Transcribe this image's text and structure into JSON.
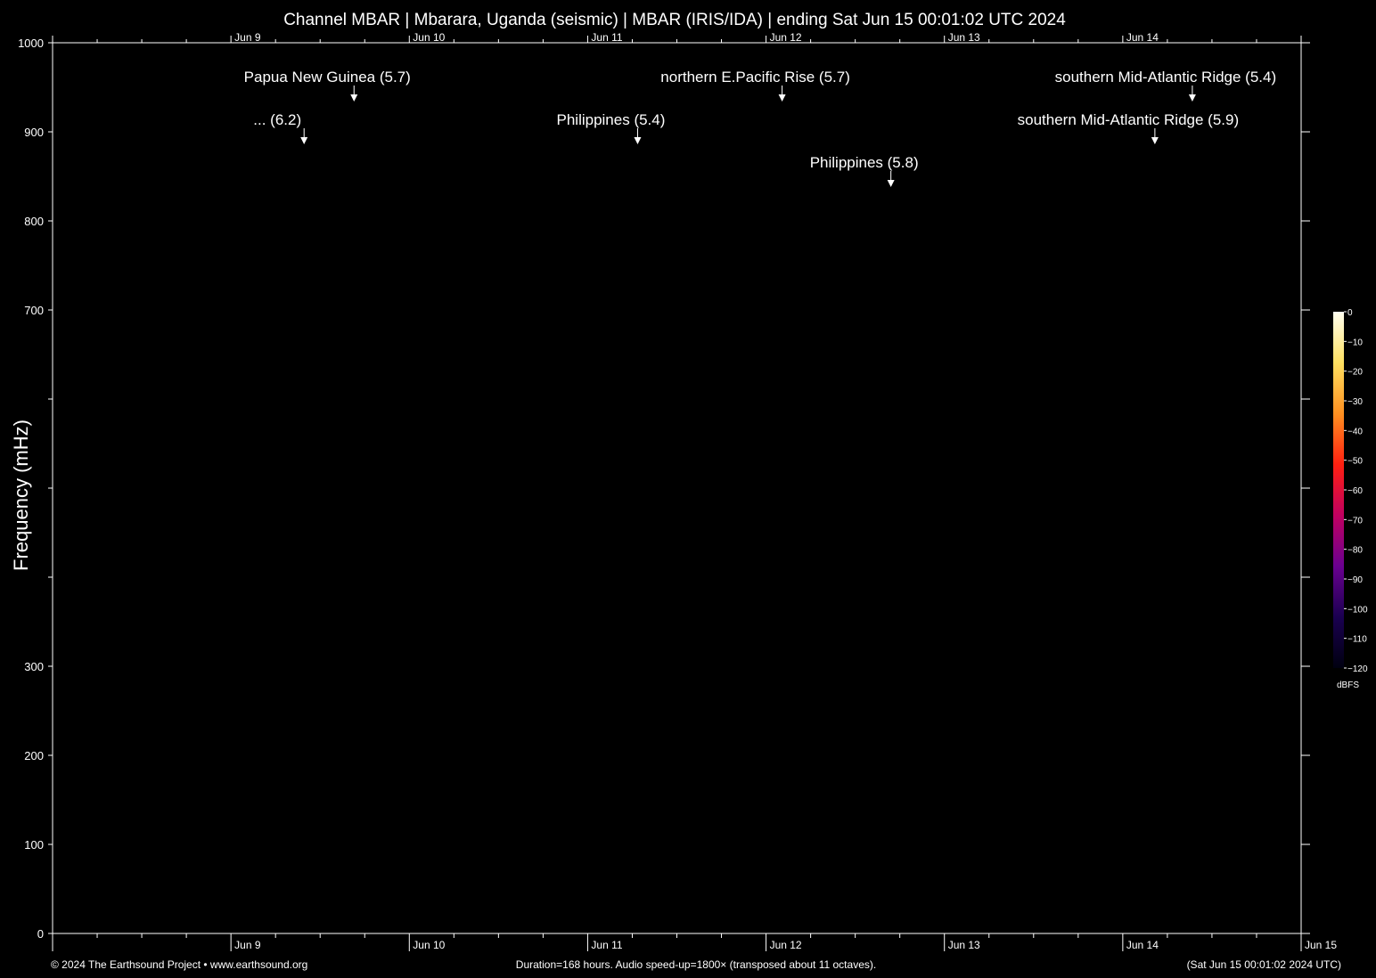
{
  "chart_data": {
    "type": "heatmap",
    "title": "Channel MBAR | Mbarara, Uganda (seismic) | MBAR (IRIS/IDA) | ending Sat Jun 15 00:01:02 UTC 2024",
    "ylabel": "Frequency (mHz)",
    "xlabel": "",
    "ylim": [
      0,
      1000
    ],
    "xlim_days": [
      8,
      15
    ],
    "yticks": [
      {
        "v": 0,
        "label": "0"
      },
      {
        "v": 100,
        "label": "100"
      },
      {
        "v": 200,
        "label": "200"
      },
      {
        "v": 300,
        "label": "300"
      },
      {
        "v": 400,
        "label": ""
      },
      {
        "v": 500,
        "label": ""
      },
      {
        "v": 600,
        "label": ""
      },
      {
        "v": 700,
        "label": "700"
      },
      {
        "v": 800,
        "label": "800"
      },
      {
        "v": 900,
        "label": "900"
      },
      {
        "v": 1000,
        "label": "1000"
      }
    ],
    "xticks_top": [
      {
        "day": 9,
        "label": "Jun  9"
      },
      {
        "day": 10,
        "label": "Jun 10"
      },
      {
        "day": 11,
        "label": "Jun 11"
      },
      {
        "day": 12,
        "label": "Jun 12"
      },
      {
        "day": 13,
        "label": "Jun 13"
      },
      {
        "day": 14,
        "label": "Jun 14"
      }
    ],
    "xticks_bottom": [
      {
        "day": 9,
        "label": "Jun  9"
      },
      {
        "day": 10,
        "label": "Jun 10"
      },
      {
        "day": 11,
        "label": "Jun 11"
      },
      {
        "day": 12,
        "label": "Jun 12"
      },
      {
        "day": 13,
        "label": "Jun 13"
      },
      {
        "day": 14,
        "label": "Jun 14"
      },
      {
        "day": 15,
        "label": "Jun 15"
      }
    ],
    "annotations": [
      {
        "text": "Papua New Guinea (5.7)",
        "day": 9.69,
        "tier": 0
      },
      {
        "text": "northern E.Pacific Rise (5.7)",
        "day": 12.09,
        "tier": 0
      },
      {
        "text": "southern Mid-Atlantic Ridge (5.4)",
        "day": 14.39,
        "tier": 0
      },
      {
        "text": "... (6.2)",
        "day": 9.41,
        "tier": 1
      },
      {
        "text": "Philippines (5.4)",
        "day": 11.28,
        "tier": 1
      },
      {
        "text": "southern Mid-Atlantic Ridge (5.9)",
        "day": 14.18,
        "tier": 1
      },
      {
        "text": "Philippines (5.8)",
        "day": 12.7,
        "tier": 2
      }
    ],
    "colorbar": {
      "unit": "dBFS",
      "range": [
        -120,
        0
      ],
      "ticks": [
        "0",
        "−10",
        "−20",
        "−30",
        "−40",
        "−50",
        "−60",
        "−70",
        "−80",
        "−90",
        "−100",
        "−110",
        "−120"
      ],
      "colors": [
        "#fffff0",
        "#ffe060",
        "#ff9020",
        "#ff2010",
        "#c00060",
        "#6a0090",
        "#1a0050",
        "#000010"
      ]
    },
    "grid": false,
    "background": "#000000"
  },
  "footer": {
    "left": "© 2024 The Earthsound Project • www.earthsound.org",
    "center": "Duration=168 hours. Audio speed-up=1800× (transposed about 11 octaves).",
    "right": "(Sat Jun 15 00:01:02 2024 UTC)"
  }
}
